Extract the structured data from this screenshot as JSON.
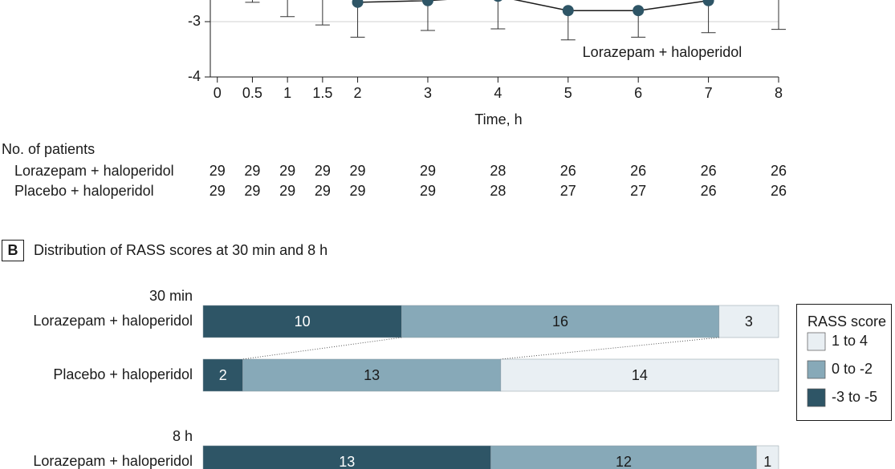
{
  "chart_data": [
    {
      "type": "line",
      "x_label": "Time, h",
      "x": [
        0,
        0.5,
        1,
        1.5,
        2,
        3,
        4,
        5,
        6,
        7,
        8
      ],
      "xlim": [
        -0.1,
        8
      ],
      "xticks": [
        0,
        0.5,
        1,
        1.5,
        2,
        3,
        4,
        5,
        6,
        7,
        8
      ],
      "ylim": [
        -4,
        -2.5
      ],
      "yticks": [
        -3,
        -4
      ],
      "grid": true,
      "series": [
        {
          "name": "Lorazepam + haloperidol",
          "color": "#2e5566",
          "values": [
            null,
            null,
            null,
            null,
            -2.65,
            -2.62,
            -2.54,
            -2.8,
            -2.8,
            -2.62,
            null
          ],
          "lower": [
            null,
            -2.65,
            -2.91,
            -3.06,
            -3.28,
            -3.16,
            -3.13,
            -3.33,
            -3.28,
            -3.2,
            -3.14
          ]
        }
      ],
      "risk_table": {
        "title": "No. of patients",
        "rows": [
          {
            "name": "Lorazepam + haloperidol",
            "values": [
              29,
              29,
              29,
              29,
              29,
              29,
              28,
              26,
              26,
              26,
              26
            ]
          },
          {
            "name": "Placebo + haloperidol",
            "values": [
              29,
              29,
              29,
              29,
              29,
              29,
              28,
              27,
              27,
              26,
              26
            ]
          }
        ]
      }
    },
    {
      "type": "stacked-bar",
      "panel": "B",
      "title": "Distribution of RASS scores at 30 min and 8 h",
      "group_labels": [
        "30 min",
        null,
        "8 h"
      ],
      "categories": [
        "Lorazepam + haloperidol",
        "Placebo + haloperidol",
        "Lorazepam + haloperidol"
      ],
      "legend_title": "RASS score",
      "legend": "right",
      "series": [
        {
          "name": "-3 to -5",
          "color": "#2e5566",
          "values": [
            10,
            2,
            13
          ]
        },
        {
          "name": "0 to -2",
          "color": "#87a9b8",
          "values": [
            16,
            13,
            12
          ]
        },
        {
          "name": "1 to 4",
          "color": "#e9eff3",
          "values": [
            3,
            14,
            1
          ]
        }
      ]
    }
  ]
}
